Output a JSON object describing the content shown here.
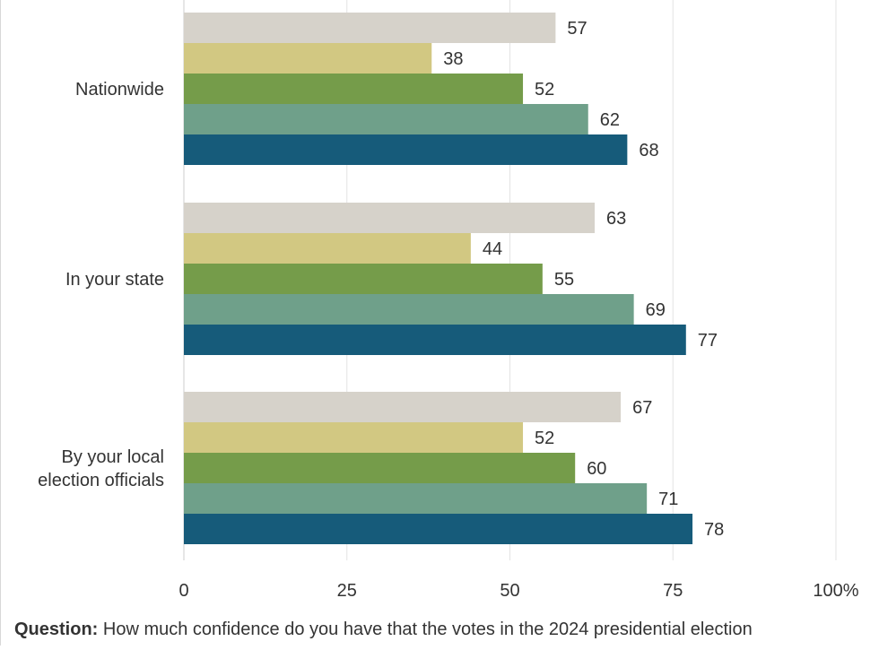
{
  "chart_data": {
    "type": "bar",
    "orientation": "horizontal",
    "categories": [
      "Nationwide",
      "In your state",
      "By your local\nelection officials"
    ],
    "series": [
      {
        "values": [
          57,
          63,
          67
        ],
        "color": "#d6d2ca"
      },
      {
        "values": [
          38,
          44,
          52
        ],
        "color": "#d2c882"
      },
      {
        "values": [
          52,
          55,
          60
        ],
        "color": "#759c4a"
      },
      {
        "values": [
          62,
          69,
          71
        ],
        "color": "#6fa08a"
      },
      {
        "values": [
          68,
          77,
          78
        ],
        "color": "#165b7a"
      }
    ],
    "x_ticks": [
      "0",
      "25",
      "50",
      "75",
      "100%"
    ],
    "xlim": [
      0,
      100
    ],
    "grid": true,
    "legend": "none"
  },
  "footer": {
    "question_label": "Question:",
    "question_text": " How much confidence do you have that the votes in the 2024 presidential election"
  }
}
